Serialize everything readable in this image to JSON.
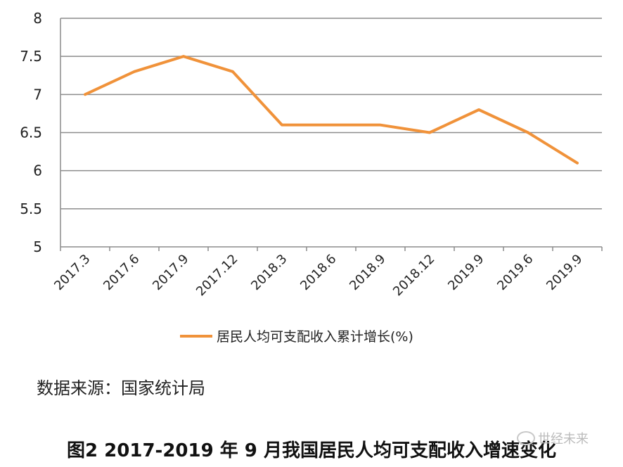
{
  "chart_data": {
    "type": "line",
    "categories": [
      "2017.3",
      "2017.6",
      "2017.9",
      "2017.12",
      "2018.3",
      "2018.6",
      "2018.9",
      "2018.12",
      "2019.9",
      "2019.6",
      "2019.9"
    ],
    "series": [
      {
        "name": "居民人均可支配收入累计增长(%)",
        "values": [
          7.0,
          7.3,
          7.5,
          7.3,
          6.6,
          6.6,
          6.6,
          6.5,
          6.8,
          6.5,
          6.1
        ],
        "color": "#f0923a"
      }
    ],
    "y_ticks": [
      "5",
      "5.5",
      "6",
      "6.5",
      "7",
      "7.5",
      "8"
    ],
    "ylim": [
      5,
      8
    ],
    "grid": true,
    "legend_position": "bottom-center"
  },
  "source_text": "数据来源：国家统计局",
  "caption": "图2 2017-2019 年 9 月我国居民人均可支配收入增速变化",
  "watermark": "世经未来"
}
